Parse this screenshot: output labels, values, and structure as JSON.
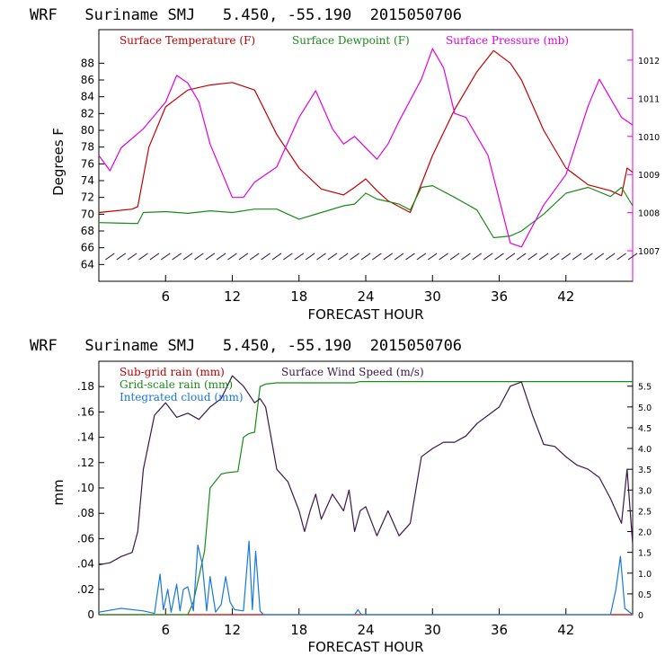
{
  "chart_data": [
    {
      "type": "line",
      "title": "WRF   Suriname SMJ   5.450, -55.190  2015050706",
      "xlabel": "FORECAST HOUR",
      "ylabel": "Degrees F",
      "xlim": [
        0,
        48
      ],
      "ylim": [
        62,
        92
      ],
      "y2lim": [
        1006.2,
        1012.8
      ],
      "xticks": [
        6,
        12,
        18,
        24,
        30,
        36,
        42
      ],
      "xtick_labels": [
        "6",
        "12",
        "18",
        "24",
        "30",
        "36",
        "42"
      ],
      "yticks": [
        64,
        66,
        68,
        70,
        72,
        74,
        76,
        78,
        80,
        82,
        84,
        86,
        88
      ],
      "ytick_labels": [
        "64",
        "66",
        "68",
        "70",
        "72",
        "74",
        "76",
        "78",
        "80",
        "82",
        "84",
        "86",
        "88"
      ],
      "y2ticks": [
        1007,
        1008,
        1009,
        1010,
        1011,
        1012
      ],
      "y2tick_labels": [
        "1007",
        "1008",
        "1009",
        "1010",
        "1011",
        "1012"
      ],
      "colors": {
        "temperature": "#c00000",
        "dewpoint": "#1a8a1a",
        "pressure": "#e000e0",
        "wind": "#3a1848"
      },
      "series": [
        {
          "name": "Surface Temperature (F)",
          "key": "temperature",
          "axis": "left",
          "x": [
            0,
            3,
            3.5,
            4.5,
            6,
            8,
            10,
            12,
            14,
            16,
            18,
            20,
            22,
            23,
            24,
            25,
            26,
            28,
            30,
            32,
            34,
            35.5,
            37,
            38,
            40,
            42,
            44,
            46,
            47,
            47.5,
            48
          ],
          "y": [
            70.2,
            70.6,
            70.9,
            78,
            82.8,
            84.8,
            85.4,
            85.7,
            84.8,
            79.5,
            75.5,
            73,
            72.3,
            73.2,
            74.2,
            72.8,
            71.6,
            70.2,
            77,
            82.5,
            87,
            89.5,
            88,
            86,
            80,
            75.5,
            73.5,
            72.8,
            72.2,
            75.5,
            75
          ]
        },
        {
          "name": "Surface Dewpoint (F)",
          "key": "dewpoint",
          "axis": "left",
          "x": [
            0,
            3,
            3.5,
            4,
            6,
            8,
            10,
            12,
            14,
            16,
            18,
            20,
            22,
            23,
            24,
            25,
            27,
            28,
            29,
            30,
            32,
            34,
            35.5,
            37,
            38,
            40,
            42,
            44,
            46,
            47,
            48
          ],
          "y": [
            69,
            68.9,
            68.9,
            70.2,
            70.3,
            70.1,
            70.4,
            70.2,
            70.6,
            70.6,
            69.4,
            70.2,
            71,
            71.2,
            72.5,
            71.8,
            71.2,
            70.5,
            73.2,
            73.4,
            72,
            70.5,
            67.2,
            67.4,
            68,
            70,
            72.5,
            73.2,
            72.1,
            73.2,
            71
          ]
        },
        {
          "name": "Surface Pressure (mb)",
          "key": "pressure",
          "axis": "right",
          "x": [
            0,
            1,
            2,
            4,
            6,
            7,
            8,
            9,
            10,
            12,
            13,
            14,
            16,
            18,
            19.5,
            21,
            22,
            23,
            25,
            26,
            27,
            29,
            30,
            31,
            32,
            33,
            35,
            37,
            38,
            40,
            42,
            44,
            45,
            46,
            47,
            48
          ],
          "y": [
            1009.5,
            1009.1,
            1009.7,
            1010.2,
            1010.9,
            1011.6,
            1011.4,
            1010.9,
            1009.8,
            1008.4,
            1008.4,
            1008.8,
            1009.2,
            1010.5,
            1011.2,
            1010.2,
            1009.8,
            1010,
            1009.4,
            1009.8,
            1010.4,
            1011.5,
            1012.3,
            1011.8,
            1010.6,
            1010.5,
            1009.5,
            1007.2,
            1007.1,
            1008.2,
            1009,
            1010.8,
            1011.5,
            1011,
            1010.5,
            1010.3
          ]
        }
      ],
      "wind_barbs_note": "Row of wind barbs along the bottom of the panel"
    },
    {
      "type": "line",
      "title": "WRF   Suriname SMJ   5.450, -55.190  2015050706",
      "xlabel": "FORECAST HOUR",
      "ylabel": "mm",
      "xlim": [
        0,
        48
      ],
      "ylim": [
        0,
        0.2
      ],
      "y2lim": [
        0,
        6.1
      ],
      "xticks": [
        6,
        12,
        18,
        24,
        30,
        36,
        42
      ],
      "xtick_labels": [
        "6",
        "12",
        "18",
        "24",
        "30",
        "36",
        "42"
      ],
      "yticks": [
        0,
        0.02,
        0.04,
        0.06,
        0.08,
        0.1,
        0.12,
        0.14,
        0.16,
        0.18
      ],
      "ytick_labels": [
        "0",
        ".02",
        ".04",
        ".06",
        ".08",
        ".10",
        ".12",
        ".14",
        ".16",
        ".18"
      ],
      "y2ticks": [
        0,
        0.5,
        1.0,
        1.5,
        2.0,
        2.5,
        3.0,
        3.5,
        4.0,
        4.5,
        5.0,
        5.5
      ],
      "y2tick_labels": [
        "0",
        "0.5",
        "1.0",
        "1.5",
        "2.0",
        "2.5",
        "3.0",
        "3.5",
        "4.0",
        "4.5",
        "5.0",
        "5.5"
      ],
      "colors": {
        "subgrid": "#c00000",
        "gridscale": "#1a8a1a",
        "cloud": "#1878d8",
        "wind": "#3a1848"
      },
      "series": [
        {
          "name": "Sub-grid rain (mm)",
          "key": "subgrid",
          "axis": "left",
          "x": [
            0,
            48
          ],
          "y": [
            0,
            0
          ]
        },
        {
          "name": "Grid-scale rain (mm)",
          "key": "gridscale",
          "axis": "left",
          "x": [
            0,
            8,
            8.5,
            9.5,
            10,
            11,
            11.5,
            12.5,
            13,
            13.5,
            14,
            14.5,
            15,
            16,
            23,
            23.5,
            48
          ],
          "y": [
            0,
            0,
            0.01,
            0.05,
            0.1,
            0.111,
            0.112,
            0.113,
            0.14,
            0.143,
            0.144,
            0.18,
            0.182,
            0.183,
            0.183,
            0.184,
            0.184
          ]
        },
        {
          "name": "Integrated cloud (mm)",
          "key": "cloud",
          "axis": "left",
          "x": [
            0,
            2,
            4,
            5,
            5.5,
            5.8,
            6.2,
            6.5,
            7,
            7.3,
            7.6,
            8,
            8.5,
            8.9,
            9.3,
            9.7,
            10,
            10.5,
            11,
            11.4,
            11.8,
            12.2,
            13,
            13.5,
            13.8,
            14.1,
            14.5,
            14.8,
            15.1,
            15.4,
            16,
            23,
            23.3,
            23.6,
            46,
            46.5,
            46.9,
            47.3,
            48
          ],
          "y": [
            0.002,
            0.005,
            0.003,
            0.001,
            0.032,
            0.004,
            0.02,
            0.002,
            0.024,
            0.003,
            0.02,
            0.022,
            0.003,
            0.055,
            0.04,
            0.003,
            0.03,
            0.002,
            0.008,
            0.03,
            0.01,
            0.004,
            0.003,
            0.058,
            0.004,
            0.05,
            0.003,
            0,
            0,
            0,
            0,
            0,
            0.004,
            0,
            0,
            0.02,
            0.046,
            0.005,
            0
          ]
        },
        {
          "name": "Surface Wind Speed (m/s)",
          "key": "wind",
          "axis": "right",
          "x": [
            0,
            1,
            2,
            3,
            3.5,
            4,
            5,
            6,
            7,
            8,
            9,
            10,
            11,
            12,
            13,
            14,
            14.5,
            15,
            16,
            17,
            18,
            18.5,
            19,
            19.5,
            20,
            21,
            22,
            22.5,
            23,
            23.5,
            24,
            25,
            26,
            27,
            28,
            29,
            30,
            31,
            32,
            33,
            34,
            35,
            36,
            37,
            38,
            39,
            40,
            41,
            42,
            43,
            44,
            45,
            46,
            46.5,
            47,
            47.5,
            48
          ],
          "y": [
            1.2,
            1.25,
            1.4,
            1.5,
            2.0,
            3.5,
            4.8,
            5.1,
            4.75,
            4.85,
            4.7,
            5.0,
            5.2,
            5.75,
            5.5,
            5.1,
            5.2,
            5.0,
            3.5,
            3.2,
            2.5,
            2.0,
            2.5,
            2.9,
            2.3,
            2.9,
            2.5,
            3.0,
            2.0,
            2.5,
            2.6,
            1.9,
            2.5,
            1.9,
            2.2,
            3.8,
            4.0,
            4.15,
            4.15,
            4.3,
            4.6,
            4.8,
            5.0,
            5.5,
            5.6,
            4.8,
            4.1,
            4.05,
            3.8,
            3.6,
            3.5,
            3.3,
            2.8,
            2.5,
            2.2,
            3.5,
            1.7
          ]
        }
      ]
    }
  ]
}
